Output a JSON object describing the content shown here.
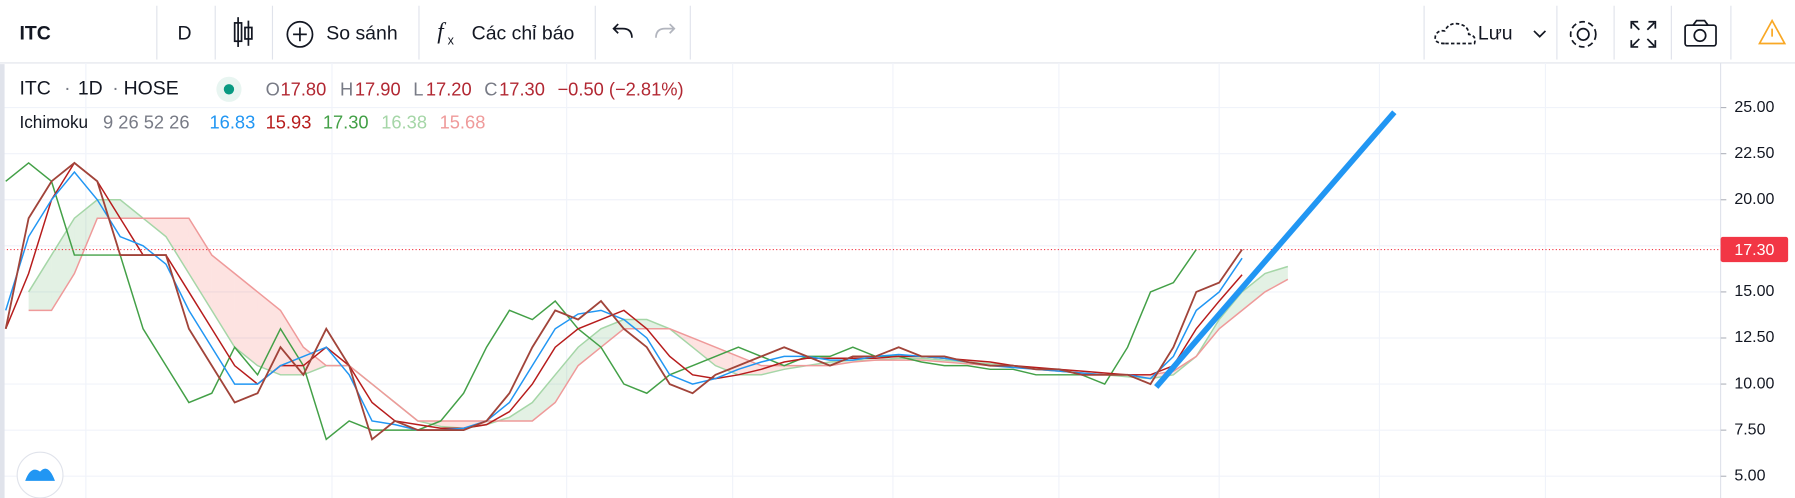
{
  "toolbar": {
    "symbol": "ITC",
    "interval": "D",
    "compare": "So sánh",
    "indicators": "Các chỉ báo",
    "save": "Lưu"
  },
  "legend": {
    "symbol": "ITC",
    "interval": "1D",
    "exchange": "HOSE",
    "open_label": "O",
    "open": "17.80",
    "high_label": "H",
    "high": "17.90",
    "low_label": "L",
    "low": "17.20",
    "close_label": "C",
    "close": "17.30",
    "change": "−0.50 (−2.81%)",
    "indicator": "Ichimoku",
    "params": "9 26 52 26",
    "values": [
      "16.83",
      "15.93",
      "17.30",
      "16.38",
      "15.68"
    ]
  },
  "chart_data": {
    "type": "line",
    "x": [
      0,
      1,
      2,
      3,
      4,
      5,
      6,
      7,
      8,
      9,
      10,
      11,
      12,
      13,
      14,
      15,
      16,
      17,
      18,
      19,
      20,
      21,
      22,
      23,
      24,
      25,
      26,
      27,
      28,
      29,
      30,
      31,
      32,
      33,
      34,
      35,
      36,
      37,
      38,
      39,
      40,
      41,
      42,
      43,
      44,
      45,
      46,
      47,
      48,
      49,
      50,
      51,
      52,
      53,
      54,
      55,
      56
    ],
    "xlim": [
      -0.25,
      74.9
    ],
    "ylim": [
      3.82,
      27.42
    ],
    "yticks": [
      {
        "value": 5,
        "label": "5.00"
      },
      {
        "value": 7.5,
        "label": "7.50"
      },
      {
        "value": 10,
        "label": "10.00"
      },
      {
        "value": 12.5,
        "label": "12.50"
      },
      {
        "value": 15,
        "label": "15.00"
      },
      {
        "value": 17.5,
        "label": "17.50"
      },
      {
        "value": 20,
        "label": "20.00"
      },
      {
        "value": 22.5,
        "label": "22.50"
      },
      {
        "value": 25,
        "label": "25.00"
      }
    ],
    "grid": true,
    "series": [
      {
        "name": "ITC",
        "color": "#a1443a",
        "values": [
          13,
          19,
          21,
          22,
          21,
          17,
          17,
          17,
          13,
          11,
          9,
          9.5,
          12,
          10.5,
          13,
          11,
          7,
          8,
          7.5,
          7.5,
          7.5,
          8,
          9.5,
          12,
          14,
          13.5,
          14.5,
          13,
          12,
          10,
          9.5,
          10.5,
          11,
          11.5,
          12,
          11.5,
          11,
          11.5,
          11.5,
          12,
          11.5,
          11.5,
          11.2,
          11,
          11,
          10.8,
          10.8,
          10.5,
          10.5,
          10.5,
          10,
          12,
          15,
          15.5,
          17.3,
          null,
          null
        ]
      },
      {
        "color": "#2196f3",
        "values": [
          14,
          18,
          20,
          21.5,
          20,
          18,
          17.5,
          16.5,
          14,
          12,
          10,
          10,
          11,
          11.5,
          12,
          10.5,
          8,
          7.8,
          7.5,
          7.5,
          7.6,
          8,
          9,
          11,
          13,
          13.8,
          14,
          13.5,
          12.5,
          10.5,
          10,
          10.3,
          10.8,
          11.2,
          11.5,
          11.5,
          11.3,
          11.3,
          11.5,
          11.6,
          11.5,
          11.4,
          11.2,
          11,
          10.9,
          10.8,
          10.7,
          10.6,
          10.5,
          10.5,
          10.3,
          11.5,
          14,
          15,
          16.83,
          null,
          null
        ]
      },
      {
        "color": "#b71c1c",
        "values": [
          13,
          16,
          20,
          22,
          21,
          19,
          17,
          17,
          15,
          13,
          11,
          10,
          11,
          11,
          12,
          11,
          9,
          8,
          7.8,
          7.6,
          7.6,
          7.8,
          8.5,
          10,
          12,
          13,
          13.5,
          14,
          13,
          11.5,
          10.5,
          10.3,
          10.5,
          10.8,
          11.2,
          11.4,
          11.4,
          11.4,
          11.4,
          11.5,
          11.5,
          11.4,
          11.3,
          11.2,
          11,
          10.9,
          10.8,
          10.7,
          10.6,
          10.5,
          10.5,
          11,
          13,
          14.5,
          15.93,
          null,
          null
        ]
      },
      {
        "color": "#43a047",
        "values": [
          21,
          22,
          21,
          17,
          17,
          17,
          13,
          11,
          9,
          9.5,
          12,
          10.5,
          13,
          11,
          7,
          8,
          7.5,
          7.5,
          7.5,
          8,
          9.5,
          12,
          14,
          13.5,
          14.5,
          13,
          12,
          10,
          9.5,
          10.5,
          11,
          11.5,
          12,
          11.5,
          11,
          11.5,
          11.5,
          12,
          11.5,
          11.5,
          11.2,
          11,
          11,
          10.8,
          10.8,
          10.5,
          10.5,
          10.5,
          10,
          12,
          15,
          15.5,
          17.3,
          null,
          null,
          null,
          null
        ]
      },
      {
        "color": "#a5d6a7",
        "values": [
          null,
          15,
          17,
          19,
          20,
          20,
          19,
          18,
          16,
          14,
          12,
          11,
          10.5,
          10.5,
          11,
          11,
          10,
          9,
          8,
          7.7,
          7.6,
          7.8,
          8.2,
          9,
          10.5,
          12,
          13,
          13.5,
          13.5,
          13,
          12,
          11,
          10.5,
          10.5,
          10.8,
          11,
          11.2,
          11.3,
          11.3,
          11.4,
          11.4,
          11.3,
          11.2,
          11.1,
          11,
          10.8,
          10.7,
          10.6,
          10.5,
          10.4,
          10.3,
          10.5,
          11.5,
          13.5,
          15,
          16,
          16.38
        ]
      },
      {
        "color": "#ef9a9a",
        "values": [
          null,
          14,
          14,
          16,
          19,
          19,
          19,
          19,
          19,
          17,
          16,
          15,
          14,
          12,
          11,
          11,
          10,
          9,
          8,
          8,
          8,
          8,
          8,
          8,
          9,
          11,
          12,
          13,
          13,
          13,
          12.5,
          12,
          11.5,
          11,
          11,
          11,
          11,
          11.2,
          11.3,
          11.3,
          11.3,
          11.2,
          11.1,
          11,
          11,
          10.8,
          10.7,
          10.6,
          10.5,
          10.5,
          10.5,
          10.7,
          11.5,
          13,
          14,
          15,
          15.68
        ]
      }
    ],
    "cloud_colors": {
      "up": "#43a04726",
      "down": "#f4433626"
    },
    "last_price": {
      "value": 17.3,
      "label": "17.30",
      "color": "#f23645"
    },
    "trend_line": {
      "x": [
        50.25,
        60.65
      ],
      "values": [
        9.84,
        24.75
      ],
      "color": "#2196f3"
    }
  }
}
